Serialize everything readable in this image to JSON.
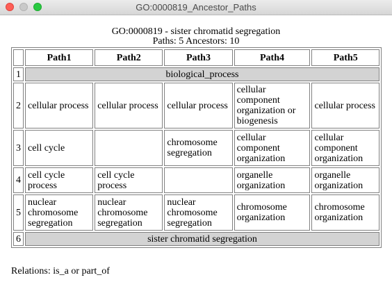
{
  "window": {
    "title": "GO:0000819_Ancestor_Paths"
  },
  "header": {
    "line1": "GO:0000819 - sister chromatid segregation",
    "line2": "Paths: 5 Ancestors: 10"
  },
  "table": {
    "columns": [
      "Path1",
      "Path2",
      "Path3",
      "Path4",
      "Path5"
    ],
    "rows": [
      {
        "index": "1",
        "span": "biological_process"
      },
      {
        "index": "2",
        "cells": [
          "cellular process",
          "cellular process",
          "cellular process",
          "cellular component organization or biogenesis",
          "cellular process"
        ]
      },
      {
        "index": "3",
        "cells": [
          "cell cycle",
          "",
          "chromosome segregation",
          "cellular component organization",
          "cellular component organization"
        ]
      },
      {
        "index": "4",
        "cells": [
          "cell cycle process",
          "cell cycle process",
          "",
          "organelle organization",
          "organelle organization"
        ]
      },
      {
        "index": "5",
        "cells": [
          "nuclear chromosome segregation",
          "nuclear chromosome segregation",
          "nuclear chromosome segregation",
          "chromosome organization",
          "chromosome organization"
        ]
      },
      {
        "index": "6",
        "span": "sister chromatid segregation"
      }
    ]
  },
  "footer": {
    "relations": "Relations: is_a or part_of"
  }
}
